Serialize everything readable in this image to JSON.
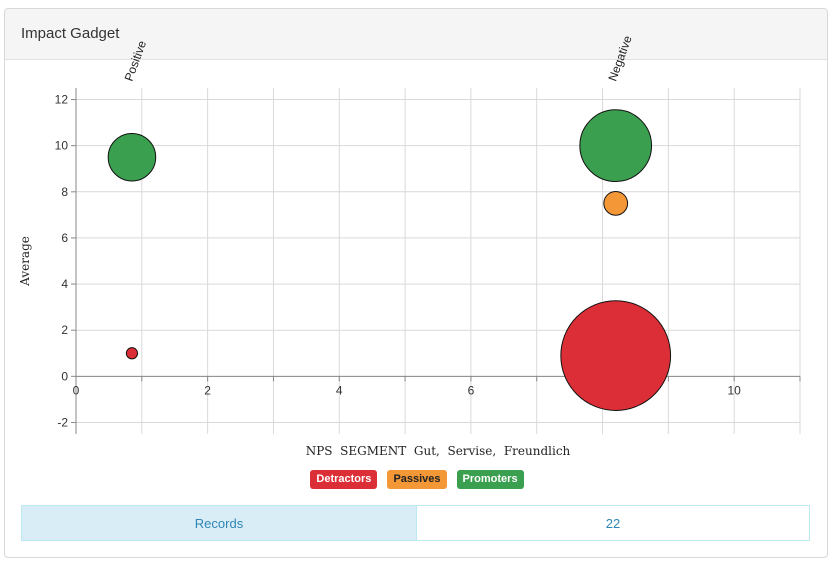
{
  "header": {
    "title": "Impact Gadget"
  },
  "chart_data": {
    "type": "scatter",
    "subtype": "bubble",
    "xlabel": "NPS SEGMENT Gut, Servise, Freundlich",
    "ylabel": "Average",
    "xlim": [
      0,
      11
    ],
    "ylim": [
      -2.5,
      12.5
    ],
    "xticks": [
      0,
      2,
      4,
      6,
      10
    ],
    "yticks": [
      -2,
      0,
      2,
      4,
      6,
      8,
      10,
      12
    ],
    "x_gridlines": [
      0,
      1,
      2,
      3,
      4,
      5,
      6,
      7,
      8,
      9,
      10,
      11
    ],
    "y_gridlines": [
      -2,
      0,
      2,
      4,
      6,
      8,
      10,
      12
    ],
    "grid": true,
    "segments": [
      {
        "label": "Positive",
        "x": 0.85
      },
      {
        "label": "Negative",
        "x": 8.2
      }
    ],
    "series": [
      {
        "name": "Detractors",
        "color": "#dc2e36",
        "points": [
          {
            "x": 0.85,
            "y": 1.0,
            "size": 1
          },
          {
            "x": 8.2,
            "y": 0.9,
            "size": 96
          }
        ]
      },
      {
        "name": "Passives",
        "color": "#f39737",
        "points": [
          {
            "x": 8.2,
            "y": 7.5,
            "size": 4.5
          }
        ]
      },
      {
        "name": "Promoters",
        "color": "#3a9f4e",
        "points": [
          {
            "x": 0.85,
            "y": 9.5,
            "size": 18
          },
          {
            "x": 8.2,
            "y": 10.0,
            "size": 41
          }
        ]
      }
    ],
    "legend": "bottom-center"
  },
  "legend": [
    {
      "label": "Detractors",
      "color": "#dc2e36",
      "text_color": "#ffffff"
    },
    {
      "label": "Passives",
      "color": "#f39737",
      "text_color": "#222222"
    },
    {
      "label": "Promoters",
      "color": "#3a9f4e",
      "text_color": "#ffffff"
    }
  ],
  "records": {
    "label": "Records",
    "value": "22"
  }
}
